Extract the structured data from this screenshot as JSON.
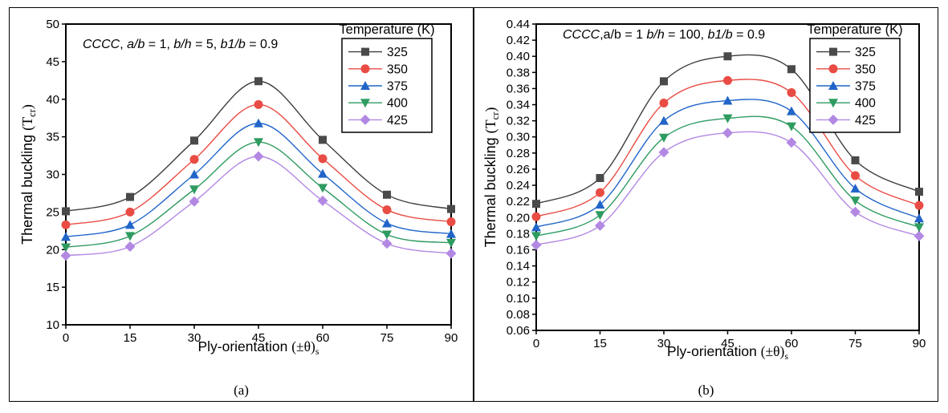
{
  "figure": {
    "background": "#ffffff",
    "border_color": "#000000"
  },
  "chart_data": [
    {
      "type": "line",
      "caption": "(a)",
      "annotation": [
        {
          "text": "CCCC",
          "italic": true
        },
        {
          "text": ", ",
          "italic": false
        },
        {
          "text": "a/b",
          "italic": true
        },
        {
          "text": " = 1, ",
          "italic": false
        },
        {
          "text": "b/h",
          "italic": true
        },
        {
          "text": " = 5, ",
          "italic": false
        },
        {
          "text": "b1/b",
          "italic": true
        },
        {
          "text": " = 0.9",
          "italic": false
        }
      ],
      "xlabel": {
        "text": "Ply-orientation ",
        "math": "(±θ)",
        "sub": "s",
        "post": ""
      },
      "ylabel": {
        "text": "Thermal buckling ",
        "math": "(T",
        "sub": "cr",
        "post": ")"
      },
      "xlim": [
        0,
        90
      ],
      "ylim": [
        10,
        50
      ],
      "x": [
        0,
        15,
        30,
        45,
        60,
        75,
        90
      ],
      "x_tick_labels": [
        "0",
        "15",
        "30",
        "45",
        "60",
        "75",
        "90"
      ],
      "y_tick_labels": [
        "10",
        "15",
        "20",
        "25",
        "30",
        "35",
        "40",
        "45",
        "50"
      ],
      "grid": false,
      "legend": {
        "title": "Temperature (K)",
        "position": "top-right"
      },
      "series": [
        {
          "name": "325",
          "marker": "square",
          "color": "#4a4a4a",
          "line_color": "#3d3d3d",
          "values": [
            25.1,
            27.0,
            34.5,
            42.4,
            34.6,
            27.3,
            25.4
          ]
        },
        {
          "name": "350",
          "marker": "circle",
          "color": "#e94c44",
          "line_color": "#e94c44",
          "values": [
            23.3,
            25.0,
            32.0,
            39.3,
            32.1,
            25.3,
            23.7
          ]
        },
        {
          "name": "375",
          "marker": "triangle-up",
          "color": "#2165c9",
          "line_color": "#2165c9",
          "values": [
            21.7,
            23.3,
            30.0,
            36.8,
            30.1,
            23.5,
            22.1
          ]
        },
        {
          "name": "400",
          "marker": "triangle-down",
          "color": "#2e9b60",
          "line_color": "#2e9b60",
          "values": [
            20.3,
            21.8,
            28.0,
            34.3,
            28.2,
            22.0,
            20.9
          ]
        },
        {
          "name": "425",
          "marker": "diamond",
          "color": "#b288e3",
          "line_color": "#b288e3",
          "values": [
            19.2,
            20.4,
            26.4,
            32.4,
            26.5,
            20.8,
            19.5
          ]
        }
      ]
    },
    {
      "type": "line",
      "caption": "(b)",
      "annotation": [
        {
          "text": "CCCC",
          "italic": true
        },
        {
          "text": ",a/b = 1 ",
          "italic": false
        },
        {
          "text": "b/h",
          "italic": true
        },
        {
          "text": " = 100, ",
          "italic": false
        },
        {
          "text": "b1/b",
          "italic": true
        },
        {
          "text": " = 0.9",
          "italic": false
        }
      ],
      "xlabel": {
        "text": "Ply-orientation ",
        "math": "(±θ)",
        "sub": "s",
        "post": ""
      },
      "ylabel": {
        "text": "Thermal buckling ",
        "math": "(T",
        "sub": "cr",
        "post": ")"
      },
      "xlim": [
        0,
        90
      ],
      "ylim": [
        0.06,
        0.44
      ],
      "x": [
        0,
        15,
        30,
        45,
        60,
        75,
        90
      ],
      "x_tick_labels": [
        "0",
        "15",
        "30",
        "45",
        "60",
        "75",
        "90"
      ],
      "y_tick_labels": [
        "0.06",
        "0.08",
        "0.10",
        "0.12",
        "0.14",
        "0.16",
        "0.18",
        "0.20",
        "0.22",
        "0.24",
        "0.26",
        "0.28",
        "0.30",
        "0.32",
        "0.34",
        "0.36",
        "0.38",
        "0.40",
        "0.42",
        "0.44"
      ],
      "grid": false,
      "legend": {
        "title": "Temperature (K)",
        "position": "top-right"
      },
      "series": [
        {
          "name": "325",
          "marker": "square",
          "color": "#4a4a4a",
          "line_color": "#3d3d3d",
          "values": [
            0.217,
            0.249,
            0.369,
            0.4,
            0.384,
            0.271,
            0.232
          ]
        },
        {
          "name": "350",
          "marker": "circle",
          "color": "#e94c44",
          "line_color": "#e94c44",
          "values": [
            0.201,
            0.231,
            0.342,
            0.37,
            0.355,
            0.252,
            0.215
          ]
        },
        {
          "name": "375",
          "marker": "triangle-up",
          "color": "#2165c9",
          "line_color": "#2165c9",
          "values": [
            0.188,
            0.216,
            0.32,
            0.345,
            0.332,
            0.236,
            0.199
          ]
        },
        {
          "name": "400",
          "marker": "triangle-down",
          "color": "#2e9b60",
          "line_color": "#2e9b60",
          "values": [
            0.177,
            0.203,
            0.299,
            0.323,
            0.313,
            0.221,
            0.188
          ]
        },
        {
          "name": "425",
          "marker": "diamond",
          "color": "#b288e3",
          "line_color": "#b288e3",
          "values": [
            0.166,
            0.19,
            0.281,
            0.305,
            0.293,
            0.207,
            0.177
          ]
        }
      ]
    }
  ]
}
